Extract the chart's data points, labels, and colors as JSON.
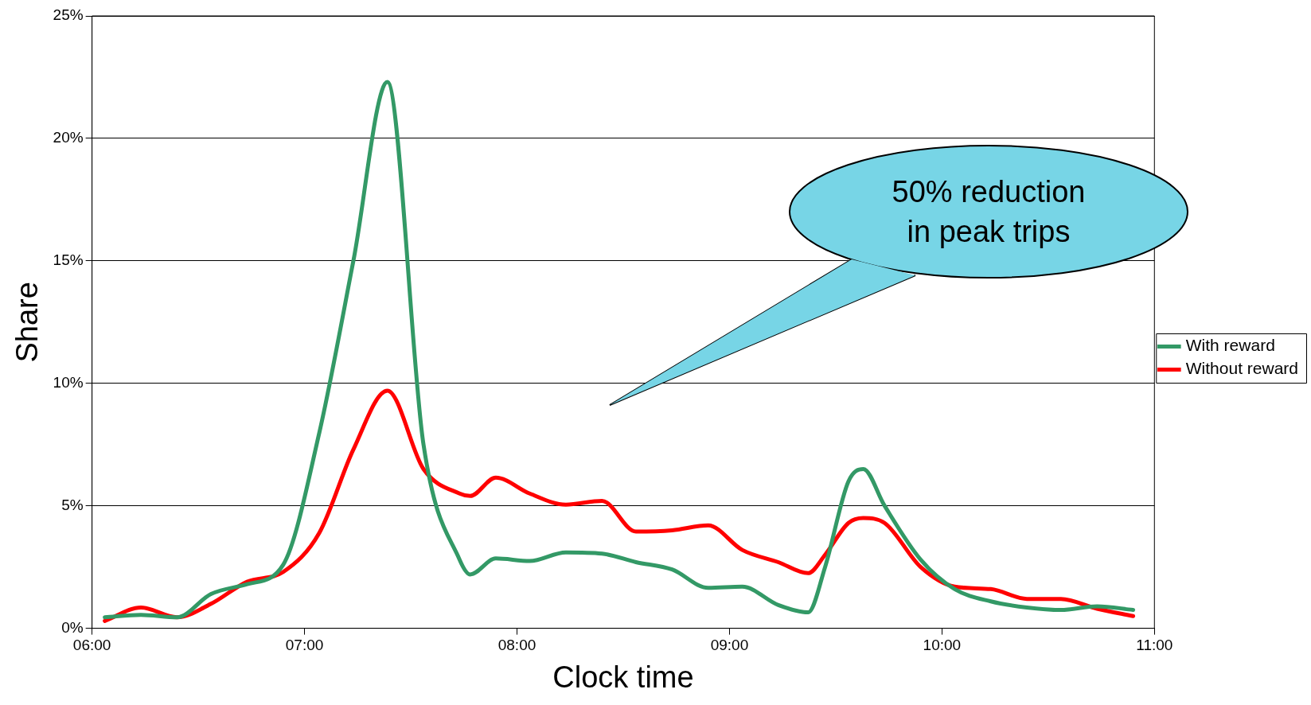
{
  "chart_data": {
    "type": "line",
    "xlabel": "Clock time",
    "ylabel": "Share",
    "xlim": [
      6,
      11
    ],
    "xticks": [
      {
        "value": 6,
        "label": "06:00"
      },
      {
        "value": 7,
        "label": "07:00"
      },
      {
        "value": 8,
        "label": "08:00"
      },
      {
        "value": 9,
        "label": "09:00"
      },
      {
        "value": 10,
        "label": "10:00"
      },
      {
        "value": 11,
        "label": "11:00"
      }
    ],
    "ylim": [
      0,
      25
    ],
    "yticks": [
      {
        "value": 0,
        "label": "0%"
      },
      {
        "value": 5,
        "label": "5%"
      },
      {
        "value": 10,
        "label": "10%"
      },
      {
        "value": 15,
        "label": "15%"
      },
      {
        "value": 20,
        "label": "20%"
      },
      {
        "value": 25,
        "label": "25%"
      }
    ],
    "x": [
      6.06,
      6.23,
      6.4,
      6.56,
      6.73,
      6.9,
      7.07,
      7.23,
      7.39,
      7.56,
      7.73,
      7.78,
      7.9,
      8.06,
      8.23,
      8.4,
      8.56,
      8.73,
      8.9,
      9.06,
      9.23,
      9.37,
      9.45,
      9.56,
      9.63,
      9.73,
      9.9,
      10.06,
      10.23,
      10.4,
      10.56,
      10.73,
      10.9
    ],
    "series": [
      {
        "name": "With reward",
        "color": "#339966",
        "values": [
          0.45,
          0.55,
          0.45,
          1.4,
          1.8,
          2.6,
          8,
          15,
          22.3,
          7.5,
          2.8,
          2.2,
          2.85,
          2.75,
          3.1,
          3.05,
          2.7,
          2.4,
          1.65,
          1.7,
          0.95,
          0.65,
          2.5,
          6.0,
          6.5,
          5.0,
          2.8,
          1.6,
          1.1,
          0.85,
          0.75,
          0.9,
          0.75
        ]
      },
      {
        "name": "Without reward",
        "color": "#ff0000",
        "values": [
          0.3,
          0.85,
          0.45,
          1.0,
          1.9,
          2.3,
          3.9,
          7.3,
          9.7,
          6.5,
          5.5,
          5.4,
          6.15,
          5.5,
          5.05,
          5.2,
          3.95,
          4.0,
          4.2,
          3.2,
          2.7,
          2.25,
          3.0,
          4.3,
          4.5,
          4.3,
          2.5,
          1.7,
          1.6,
          1.2,
          1.2,
          0.8,
          0.5
        ]
      }
    ],
    "annotations": [
      "50% reduction\nin peak trips"
    ],
    "grid": "y",
    "legend": "right",
    "marker": "none",
    "line_style": "solid"
  }
}
